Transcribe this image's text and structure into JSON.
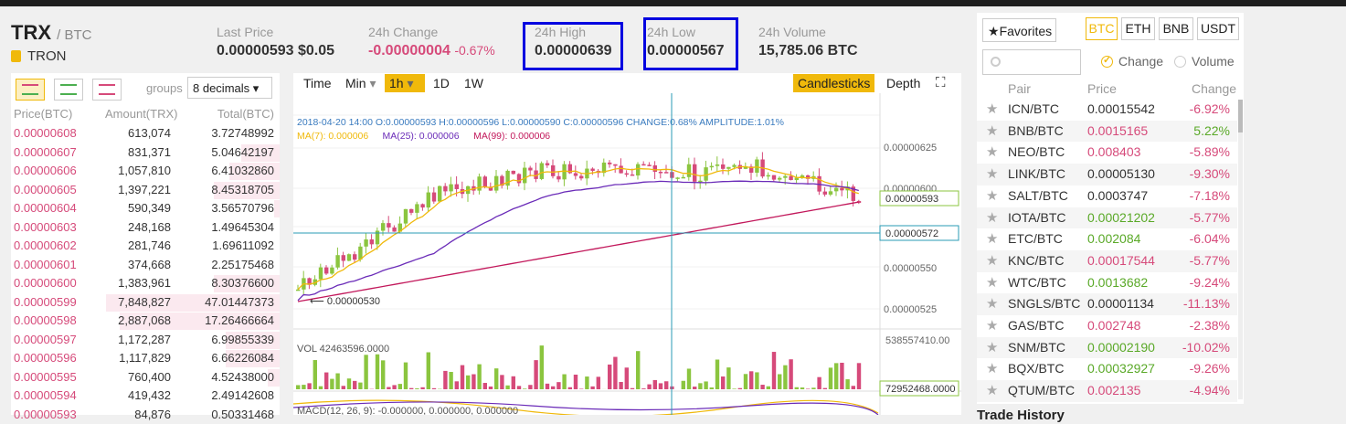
{
  "header": {
    "symbol": "TRX",
    "pair": "/ BTC",
    "coin_name": "TRON",
    "stats": [
      {
        "label": "Last Price",
        "value": "0.00000593",
        "extra": "$0.05",
        "extra_color": "#333333"
      },
      {
        "label": "24h Change",
        "value": "-0.00000004",
        "extra": "-0.67%",
        "extra_color": "#d64a7a"
      },
      {
        "label": "24h High",
        "value": "0.00000639",
        "extra": "",
        "extra_color": "#333333"
      },
      {
        "label": "24h Low",
        "value": "0.00000567",
        "extra": "",
        "extra_color": "#333333"
      },
      {
        "label": "24h Volume",
        "value": "15,785.06 BTC",
        "extra": "",
        "extra_color": "#333333"
      }
    ]
  },
  "orderbook": {
    "groups_label": "groups",
    "groups_value": "8 decimals",
    "columns": [
      "Price(BTC)",
      "Amount(TRX)",
      "Total(BTC)"
    ],
    "rows": [
      {
        "price": "0.00000608",
        "amount": "613,074",
        "total": "3.72748992",
        "side": "ask",
        "depth": 0.0
      },
      {
        "price": "0.00000607",
        "amount": "831,371",
        "total": "5.04642197",
        "side": "ask",
        "depth": 0.22
      },
      {
        "price": "0.00000606",
        "amount": "1,057,810",
        "total": "6.41032860",
        "side": "ask",
        "depth": 0.29
      },
      {
        "price": "0.00000605",
        "amount": "1,397,221",
        "total": "8.45318705",
        "side": "ask",
        "depth": 0.38
      },
      {
        "price": "0.00000604",
        "amount": "590,349",
        "total": "3.56570796",
        "side": "ask",
        "depth": 0.03
      },
      {
        "price": "0.00000603",
        "amount": "248,168",
        "total": "1.49645304",
        "side": "ask",
        "depth": 0.0
      },
      {
        "price": "0.00000602",
        "amount": "281,746",
        "total": "1.69611092",
        "side": "ask",
        "depth": 0.0
      },
      {
        "price": "0.00000601",
        "amount": "374,668",
        "total": "2.25175468",
        "side": "ask",
        "depth": 0.0
      },
      {
        "price": "0.00000600",
        "amount": "1,383,961",
        "total": "8.30376600",
        "side": "ask",
        "depth": 0.38
      },
      {
        "price": "0.00000599",
        "amount": "7,848,827",
        "total": "47.01447373",
        "side": "ask",
        "depth": 1.0
      },
      {
        "price": "0.00000598",
        "amount": "2,887,068",
        "total": "17.26466664",
        "side": "ask",
        "depth": 0.92
      },
      {
        "price": "0.00000597",
        "amount": "1,172,287",
        "total": "6.99855339",
        "side": "ask",
        "depth": 0.31
      },
      {
        "price": "0.00000596",
        "amount": "1,117,829",
        "total": "6.66226084",
        "side": "ask",
        "depth": 0.31
      },
      {
        "price": "0.00000595",
        "amount": "760,400",
        "total": "4.52438000",
        "side": "ask",
        "depth": 0.07
      },
      {
        "price": "0.00000594",
        "amount": "419,432",
        "total": "2.49142608",
        "side": "ask",
        "depth": 0.0
      },
      {
        "price": "0.00000593",
        "amount": "84,876",
        "total": "0.50331468",
        "side": "ask",
        "depth": 0.0
      }
    ]
  },
  "chart": {
    "intervals": [
      "Time",
      "Min",
      "1h",
      "1D",
      "1W"
    ],
    "active_interval": "1h",
    "candles_label": "Candlesticks",
    "depth_label": "Depth",
    "ohlc_info": "2018-04-20 14:00   O:0.00000593 H:0.00000596 L:0.00000590 C:0.00000596 CHANGE:0.68% AMPLITUDE:1.01%",
    "ma_info": [
      "MA(7): 0.000006",
      "MA(25): 0.000006",
      "MA(99): 0.000006"
    ],
    "price_ticks": [
      "0.00000625",
      "0.00000600",
      "0.00000550",
      "0.00000525"
    ],
    "crosshair_price": "0.00000572",
    "last_price_tag": "0.00000593",
    "low_marker": "0.00000530",
    "vol_info": "VOL 42463596.0000",
    "vol_max_tick": "538557410.00",
    "vol_tag": "72952468.0000",
    "macd_info": "MACD(12, 26, 9): -0.000000, 0.000000, 0.000000",
    "colors": {
      "up": "#8bc53f",
      "down": "#d64a7a",
      "ma7": "#f0b90b",
      "ma25": "#6a2bb8",
      "ma99": "#c2185b"
    }
  },
  "markets": {
    "favorites_label": "Favorites",
    "quote_tabs": [
      "BTC",
      "ETH",
      "BNB",
      "USDT"
    ],
    "active_quote": "BTC",
    "radio_change": "Change",
    "radio_volume": "Volume",
    "columns": [
      "Pair",
      "Price",
      "Change"
    ],
    "rows": [
      {
        "pair": "ICN/BTC",
        "price": "0.00015542",
        "change": "-6.92%",
        "dir": "dn",
        "pdir": "flat"
      },
      {
        "pair": "BNB/BTC",
        "price": "0.0015165",
        "change": "5.22%",
        "dir": "up",
        "pdir": "dn"
      },
      {
        "pair": "NEO/BTC",
        "price": "0.008403",
        "change": "-5.89%",
        "dir": "dn",
        "pdir": "dn"
      },
      {
        "pair": "LINK/BTC",
        "price": "0.00005130",
        "change": "-9.30%",
        "dir": "dn",
        "pdir": "flat"
      },
      {
        "pair": "SALT/BTC",
        "price": "0.0003747",
        "change": "-7.18%",
        "dir": "dn",
        "pdir": "flat"
      },
      {
        "pair": "IOTA/BTC",
        "price": "0.00021202",
        "change": "-5.77%",
        "dir": "dn",
        "pdir": "up"
      },
      {
        "pair": "ETC/BTC",
        "price": "0.002084",
        "change": "-6.04%",
        "dir": "dn",
        "pdir": "up"
      },
      {
        "pair": "KNC/BTC",
        "price": "0.00017544",
        "change": "-5.77%",
        "dir": "dn",
        "pdir": "dn"
      },
      {
        "pair": "WTC/BTC",
        "price": "0.0013682",
        "change": "-9.24%",
        "dir": "dn",
        "pdir": "up"
      },
      {
        "pair": "SNGLS/BTC",
        "price": "0.00001134",
        "change": "-11.13%",
        "dir": "dn",
        "pdir": "flat"
      },
      {
        "pair": "GAS/BTC",
        "price": "0.002748",
        "change": "-2.38%",
        "dir": "dn",
        "pdir": "dn"
      },
      {
        "pair": "SNM/BTC",
        "price": "0.00002190",
        "change": "-10.02%",
        "dir": "dn",
        "pdir": "up"
      },
      {
        "pair": "BQX/BTC",
        "price": "0.00032927",
        "change": "-9.26%",
        "dir": "dn",
        "pdir": "up"
      },
      {
        "pair": "QTUM/BTC",
        "price": "0.002135",
        "change": "-4.94%",
        "dir": "dn",
        "pdir": "dn"
      }
    ]
  },
  "trade_history_label": "Trade History"
}
